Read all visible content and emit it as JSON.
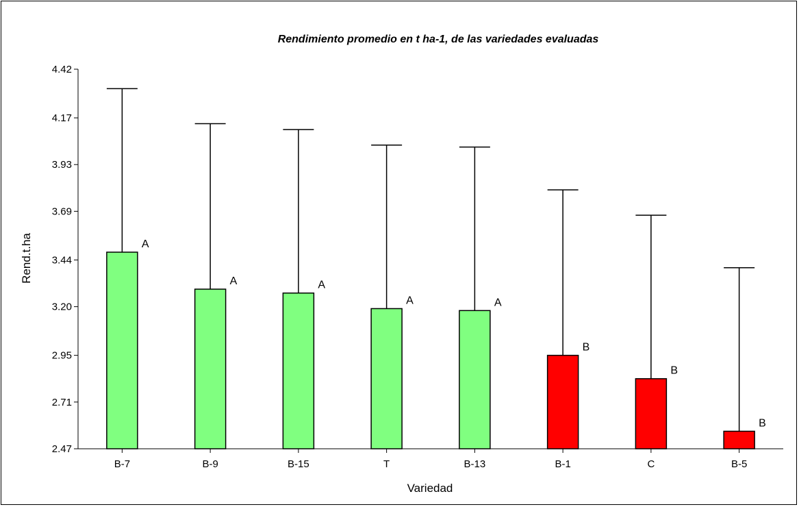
{
  "chart_data": {
    "type": "bar",
    "title": "Rendimiento promedio en t ha-1, de las variedades evaluadas",
    "xlabel": "Variedad",
    "ylabel": "Rend.t.ha",
    "ylim": [
      2.47,
      4.42
    ],
    "yticks": [
      "2.47",
      "2.71",
      "2.95",
      "3.20",
      "3.44",
      "3.69",
      "3.93",
      "4.17",
      "4.42"
    ],
    "grid": false,
    "categories": [
      "B-7",
      "B-9",
      "B-15",
      "T",
      "B-13",
      "B-1",
      "C",
      "B-5"
    ],
    "values": [
      3.48,
      3.29,
      3.27,
      3.19,
      3.18,
      2.95,
      2.83,
      2.56
    ],
    "error_upper": [
      4.32,
      4.14,
      4.11,
      4.03,
      4.02,
      3.8,
      3.67,
      3.4
    ],
    "group_letters": [
      "A",
      "A",
      "A",
      "A",
      "A",
      "B",
      "B",
      "B"
    ],
    "colors": {
      "A": "#80ff80",
      "B": "#ff0000",
      "outline": "#000000"
    }
  }
}
